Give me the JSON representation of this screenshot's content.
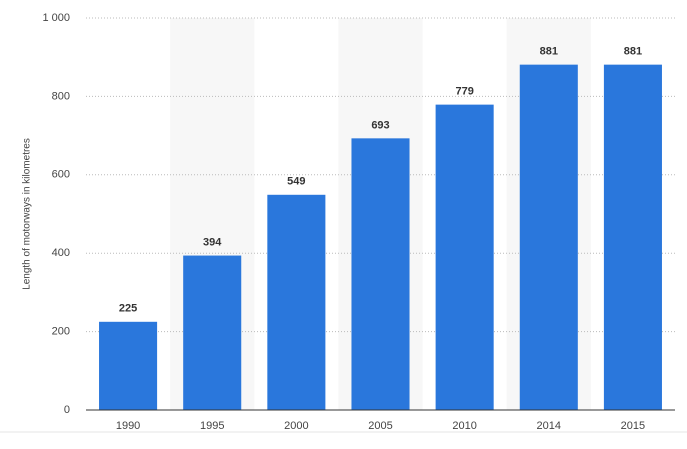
{
  "chart_data": {
    "type": "bar",
    "y_label": "Length of motorways in kilometres",
    "categories": [
      "1990",
      "1995",
      "2000",
      "2005",
      "2010",
      "2014",
      "2015"
    ],
    "values": [
      225,
      394,
      549,
      693,
      779,
      881,
      881
    ],
    "color": "#2a77dc",
    "ylim": [
      0,
      1000
    ],
    "yticks": [
      0,
      200,
      400,
      600,
      800,
      {
        "value": 1000,
        "label": "1 000"
      }
    ],
    "grid": true
  }
}
